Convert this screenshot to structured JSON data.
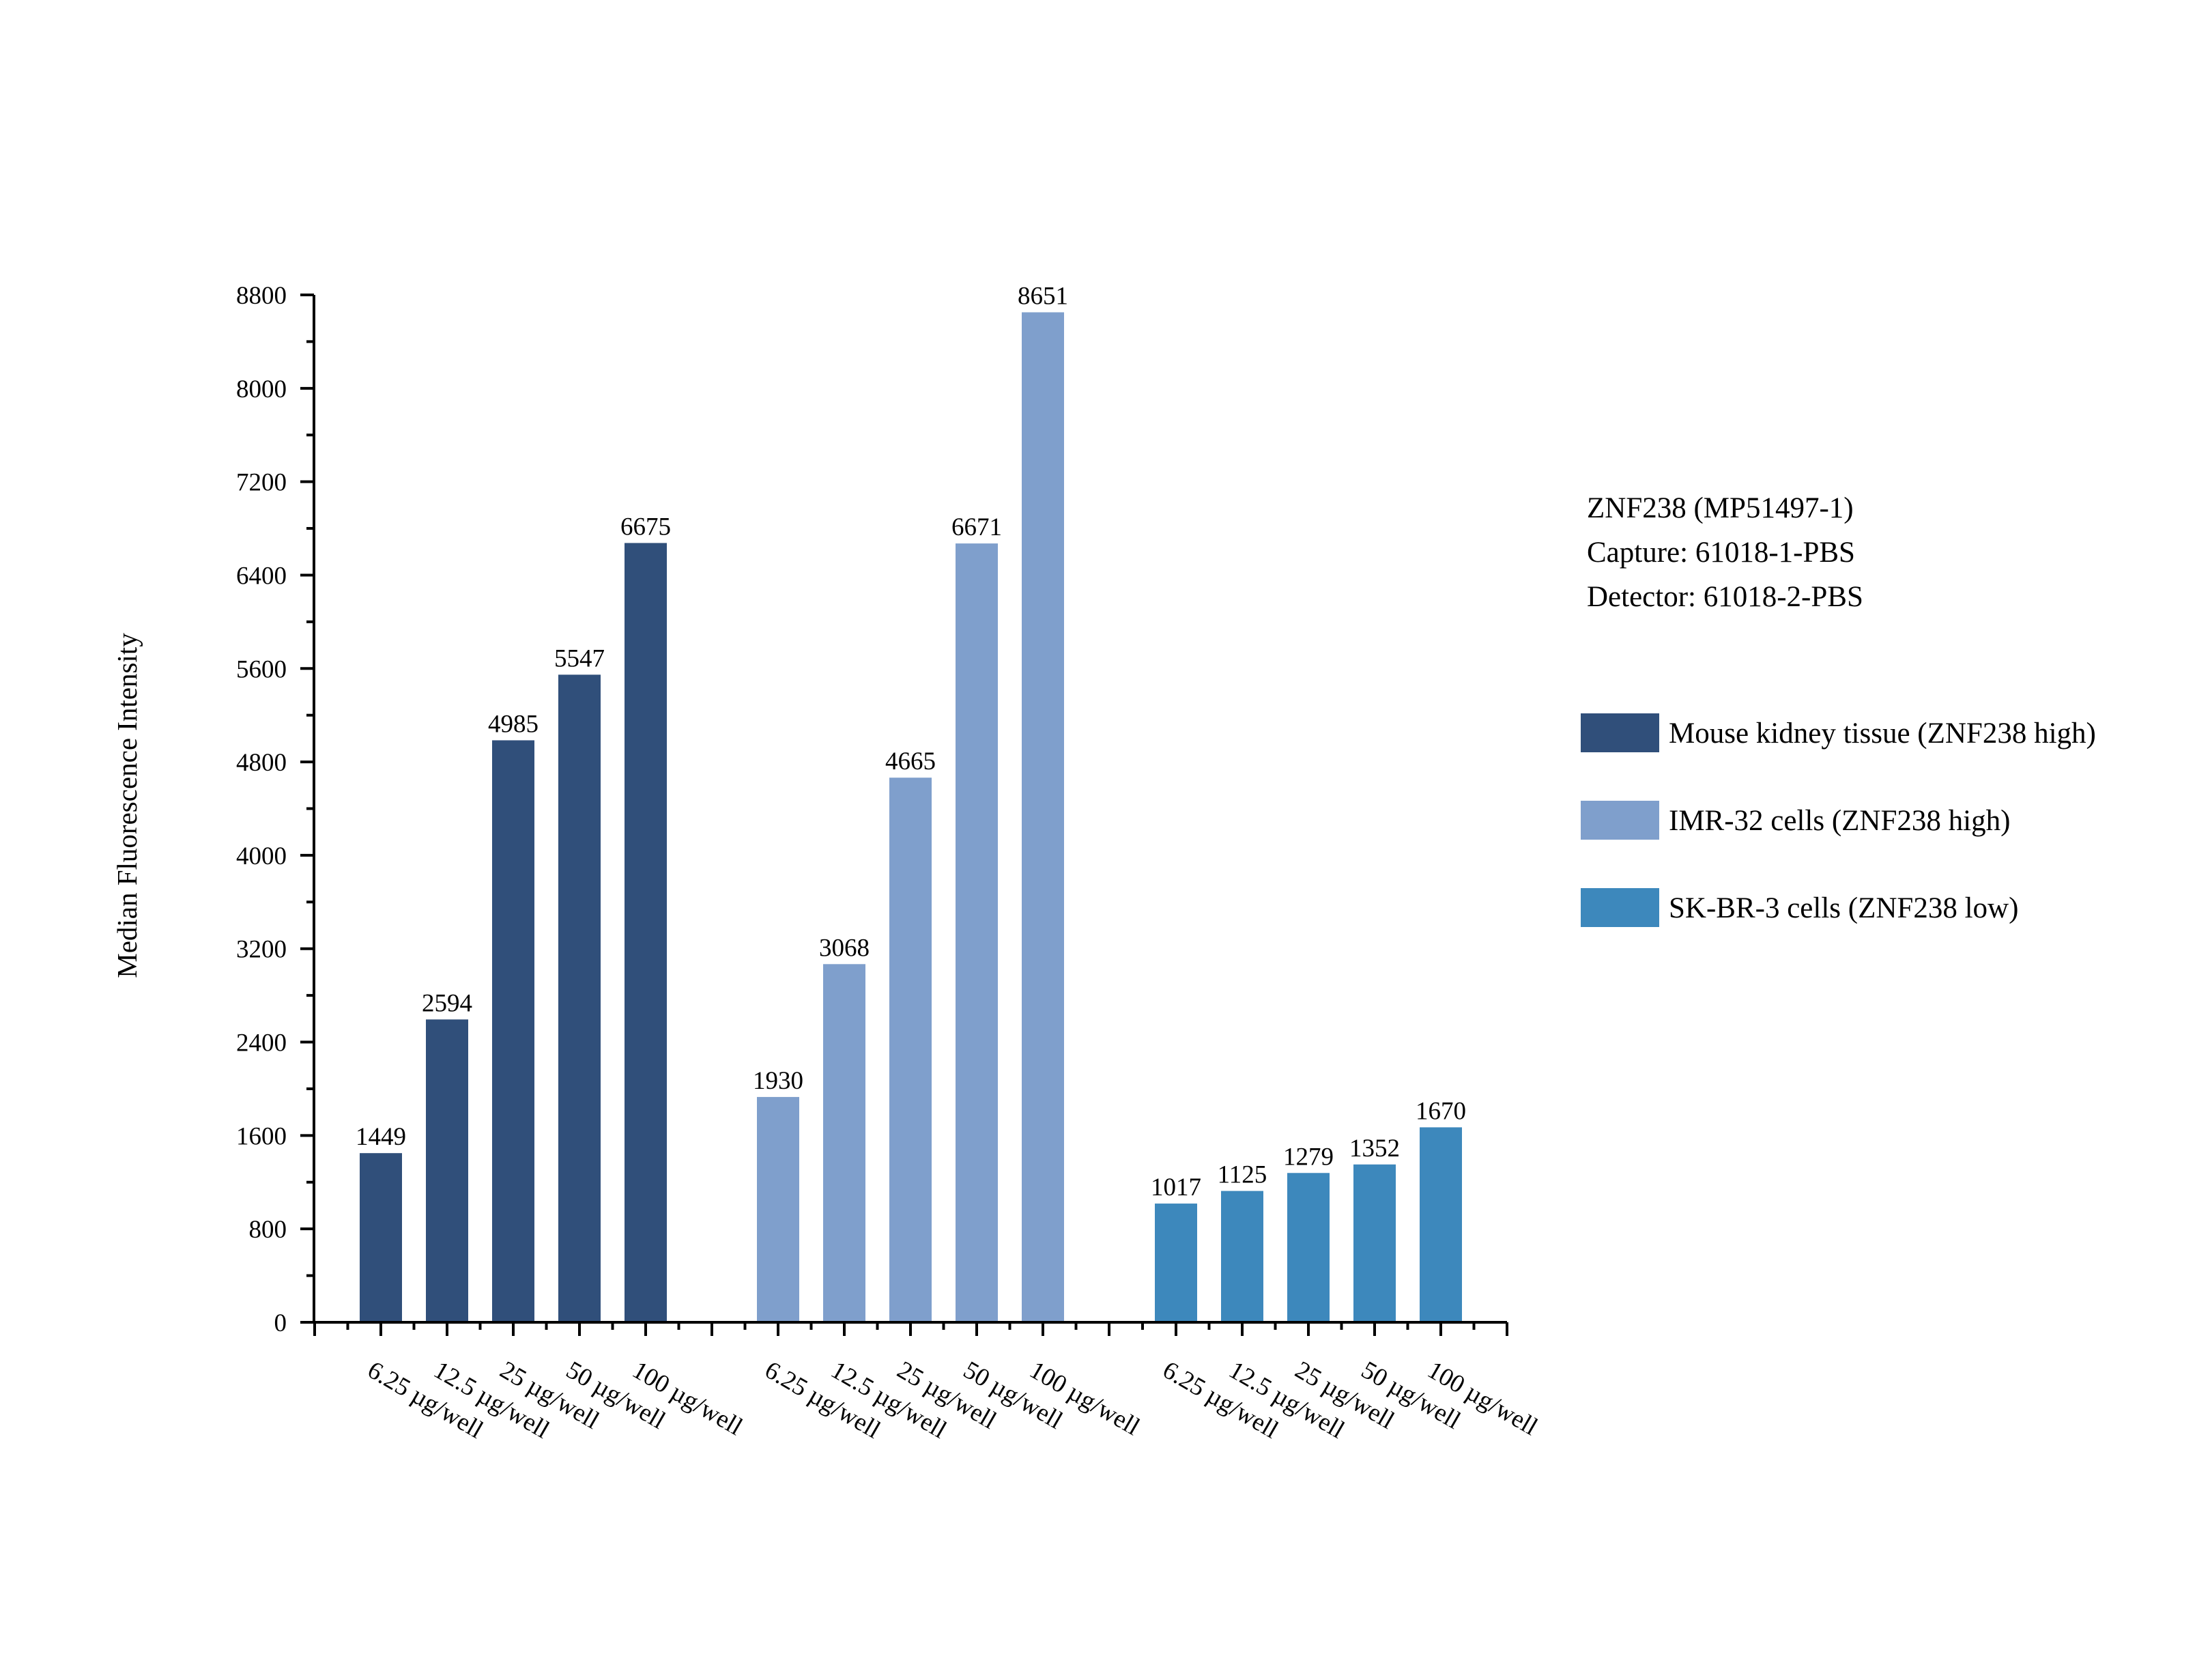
{
  "chart_data": {
    "type": "bar",
    "ylabel": "Median Fluorescence Intensity",
    "ylim": [
      0,
      8800
    ],
    "yticks": [
      0,
      800,
      1600,
      2400,
      3200,
      4000,
      4800,
      5600,
      6400,
      7200,
      8000,
      8800
    ],
    "grid": false,
    "legend_position": "right",
    "annotations": [
      "ZNF238 (MP51497-1)",
      "Capture: 61018-1-PBS",
      "Detector: 61018-2-PBS"
    ],
    "categories": [
      "6.25 µg/well",
      "12.5 µg/well",
      "25 µg/well",
      "50 µg/well",
      "100 µg/well"
    ],
    "series": [
      {
        "name": "Mouse kidney tissue (ZNF238 high)",
        "color": "#304f7a",
        "values": [
          1449,
          2594,
          4985,
          5547,
          6675
        ]
      },
      {
        "name": "IMR-32 cells (ZNF238 high)",
        "color": "#7f9fcc",
        "values": [
          1930,
          3068,
          4665,
          6671,
          8651
        ]
      },
      {
        "name": "SK-BR-3 cells (ZNF238 low)",
        "color": "#3d88bc",
        "values": [
          1017,
          1125,
          1279,
          1352,
          1670
        ]
      }
    ]
  }
}
